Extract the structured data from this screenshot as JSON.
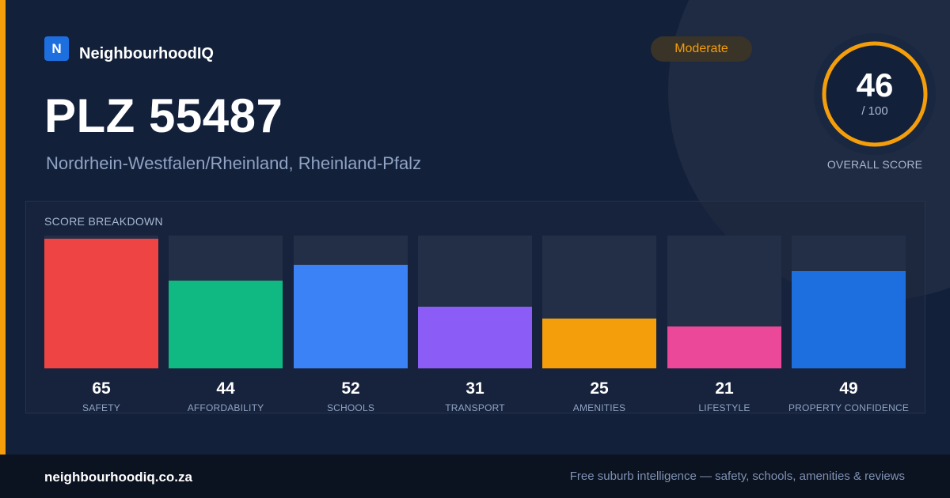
{
  "brand": {
    "logo_letter": "N",
    "name": "NeighbourhoodIQ"
  },
  "badge": {
    "label": "Moderate",
    "color": "#f59e0b"
  },
  "title": "PLZ 55487",
  "subtitle": "Nordrhein-Westfalen/Rheinland, Rheinland-Pfalz",
  "overall": {
    "score": "46",
    "max": "/ 100",
    "label": "OVERALL SCORE",
    "fraction": 0.46,
    "ring_color": "#f59e0b"
  },
  "breakdown_title": "SCORE BREAKDOWN",
  "chart_data": {
    "type": "bar",
    "categories": [
      "SAFETY",
      "AFFORDABILITY",
      "SCHOOLS",
      "TRANSPORT",
      "AMENITIES",
      "LIFESTYLE",
      "PROPERTY CONFIDENCE"
    ],
    "values": [
      65,
      44,
      52,
      31,
      25,
      21,
      49
    ],
    "colors": [
      "#ef4444",
      "#10b981",
      "#3b82f6",
      "#8b5cf6",
      "#f59e0b",
      "#ec4899",
      "#1d6fe0"
    ]
  },
  "footer": {
    "url": "neighbourhoodiq.co.za",
    "tagline": "Free suburb intelligence — safety, schools, amenities & reviews"
  }
}
